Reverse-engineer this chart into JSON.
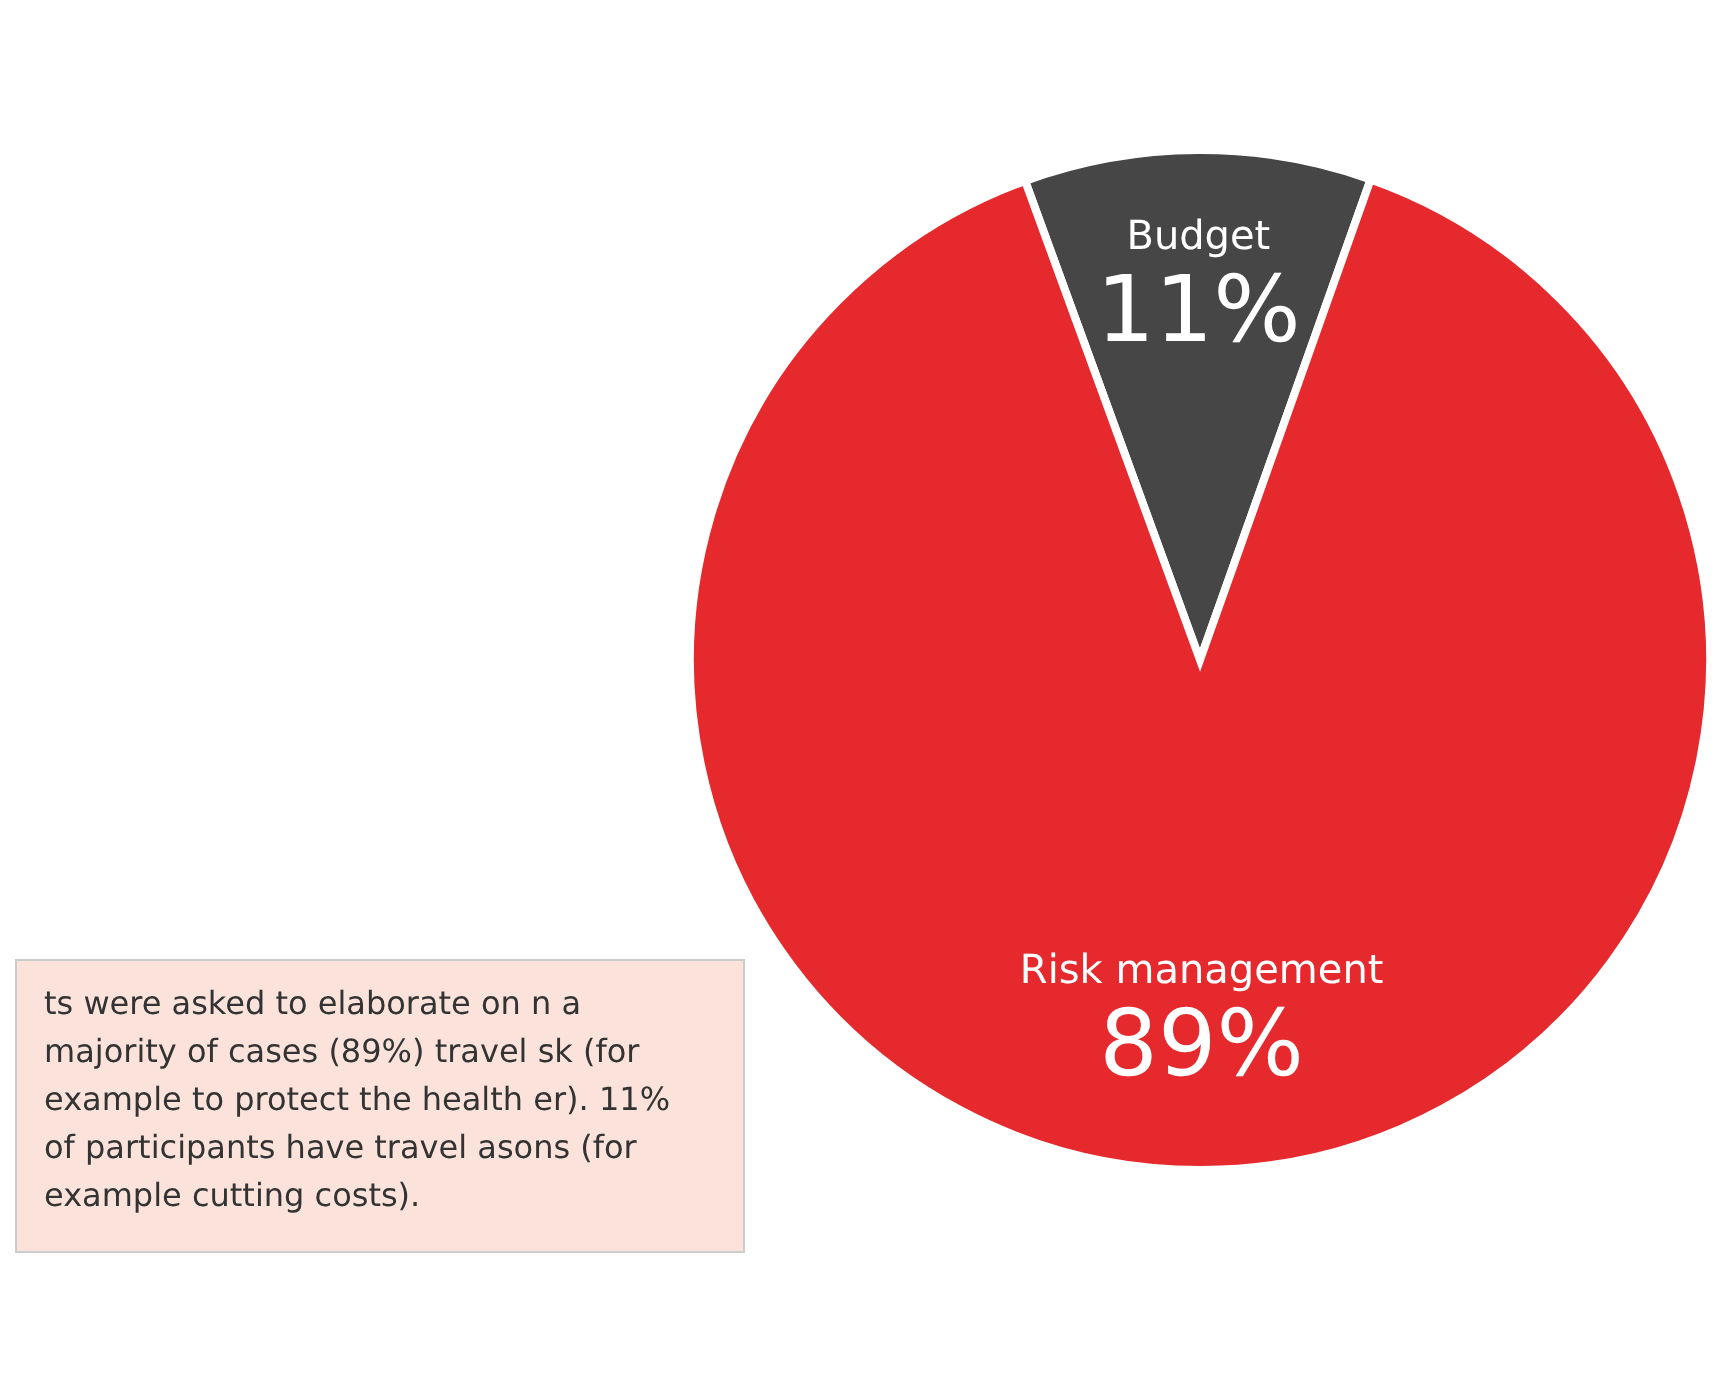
{
  "chart_data": {
    "type": "pie",
    "categories": [
      "Budget",
      "Risk management"
    ],
    "values": [
      11,
      89
    ],
    "colors": [
      "#464646",
      "#e5292d"
    ],
    "value_labels": [
      "11%",
      "89%"
    ],
    "annotations": [
      "ts were asked to elaborate on n a majority of cases (89%) travel sk (for example to protect the health er). 11% of participants have travel asons (for example cutting costs)."
    ]
  }
}
